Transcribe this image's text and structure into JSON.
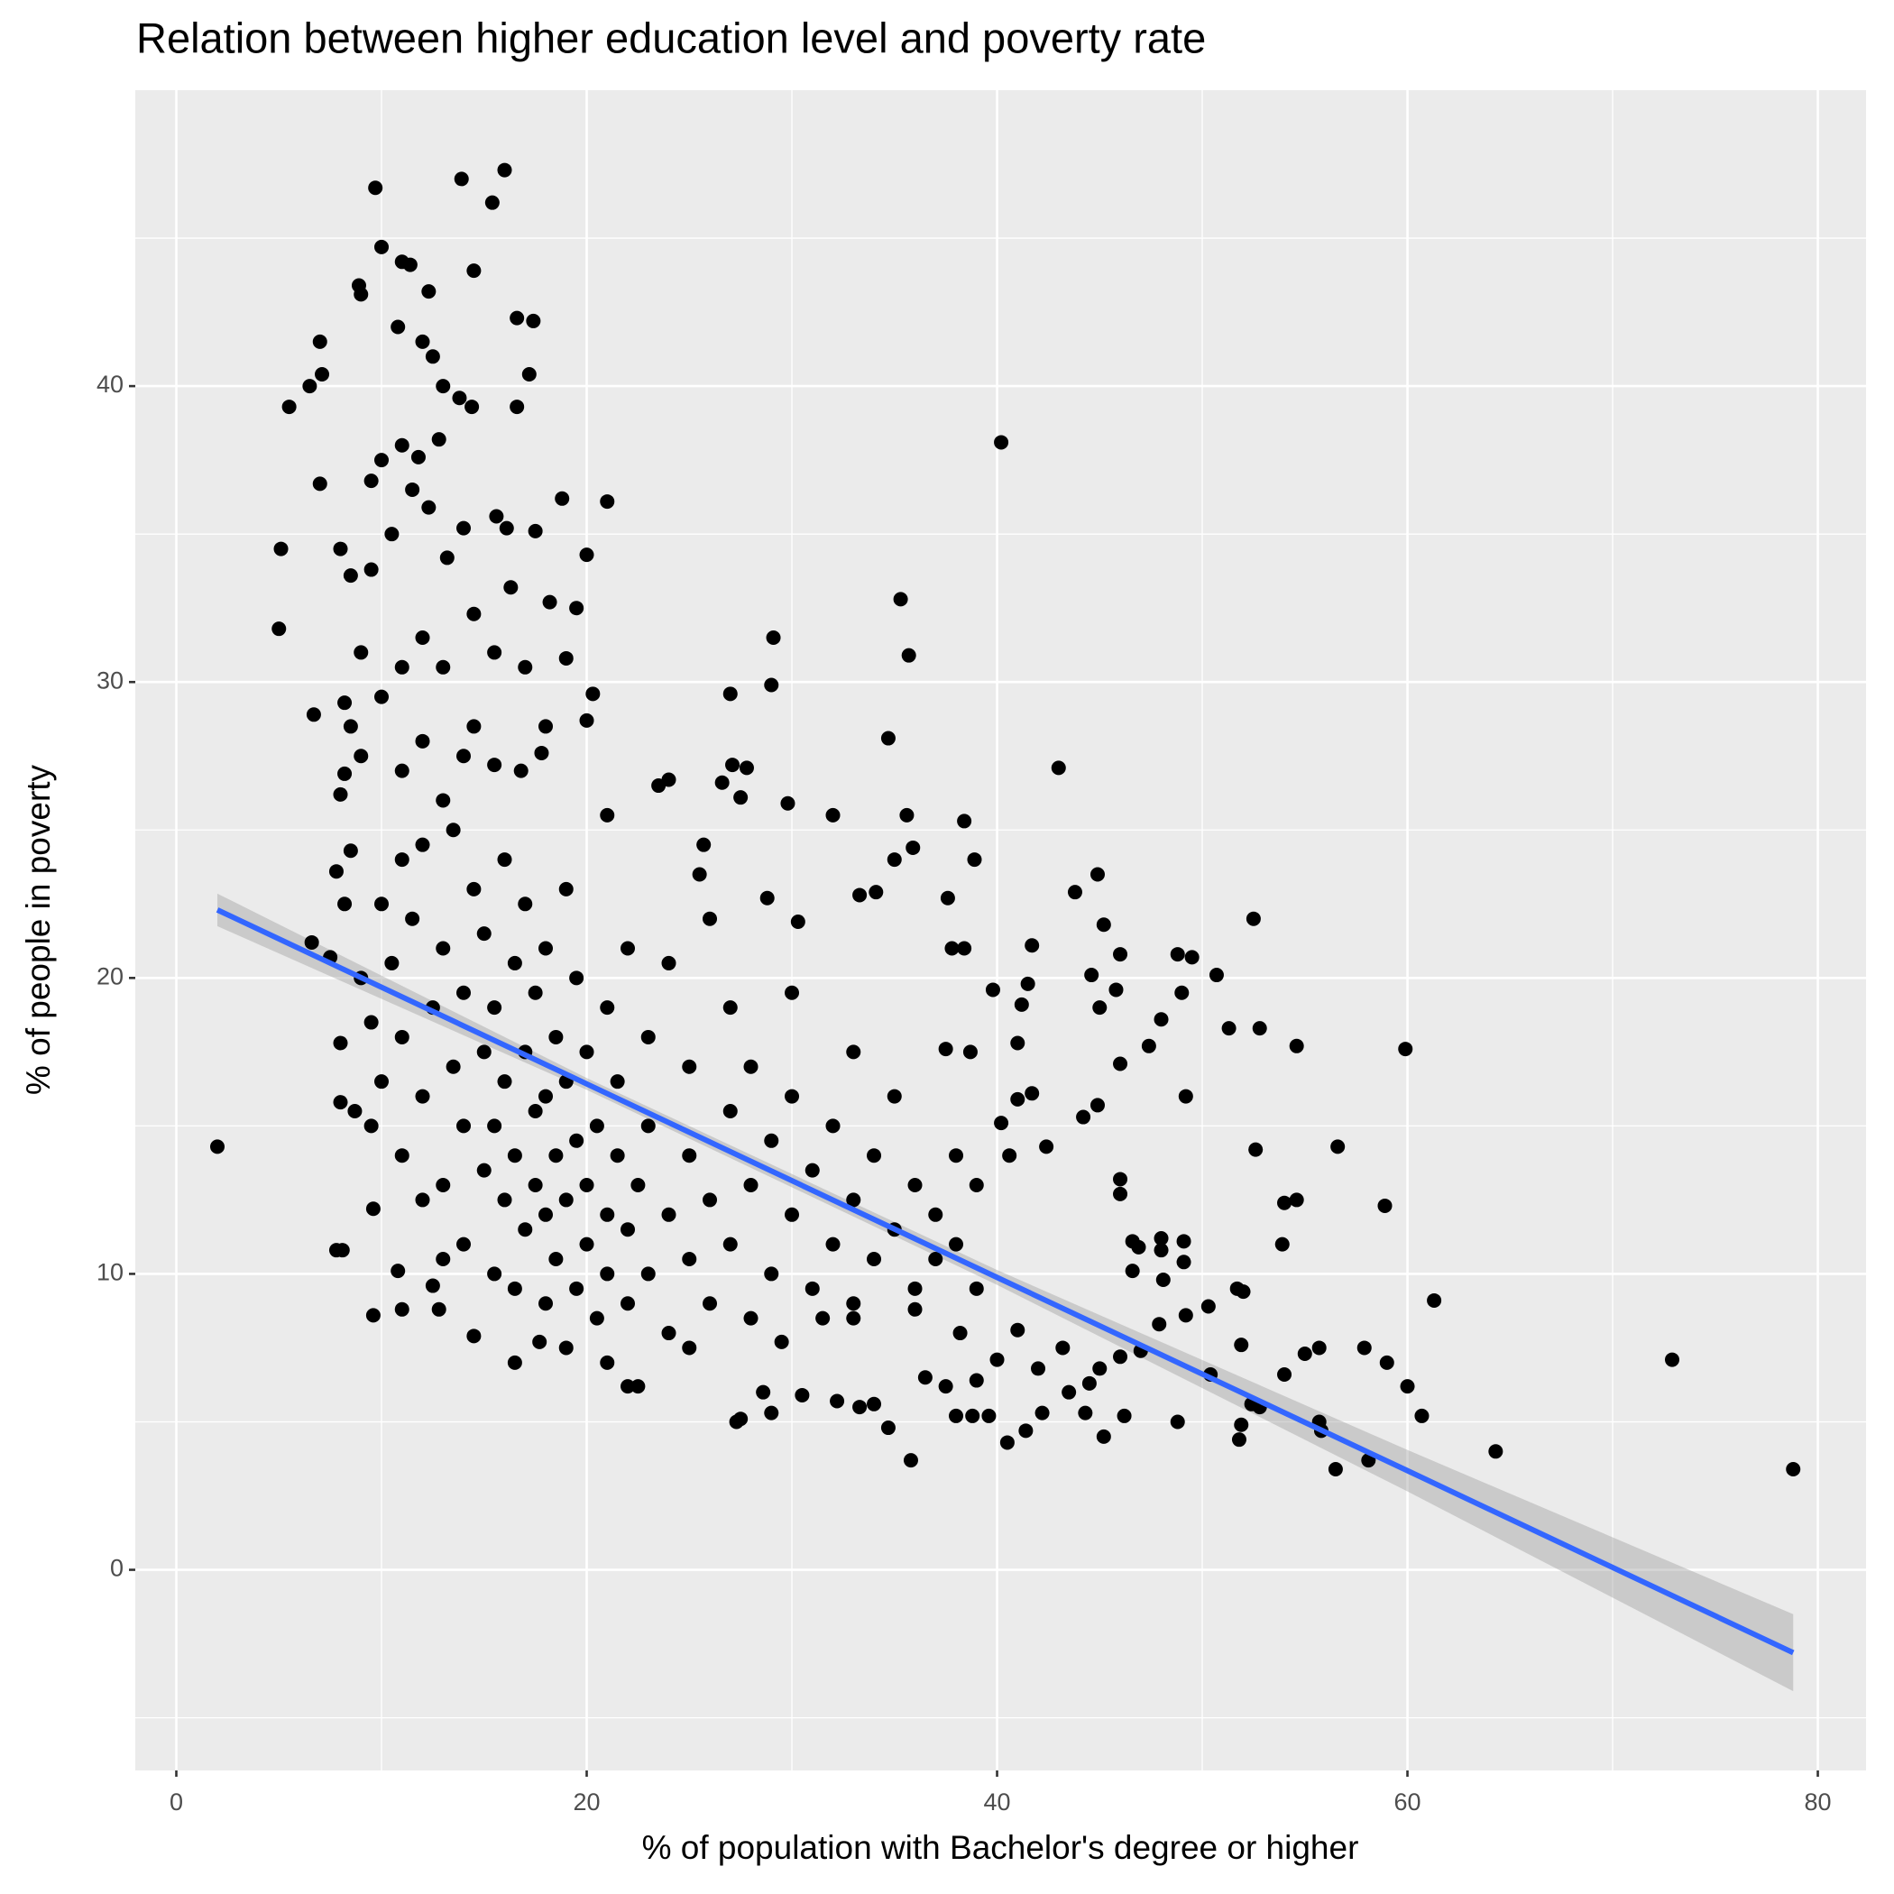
{
  "chart_data": {
    "type": "scatter",
    "title": "Relation between higher education level and poverty rate",
    "x_label": "% of population with Bachelor's degree or higher",
    "y_label": "% of people in poverty",
    "xlim": [
      -2,
      82.35
    ],
    "ylim": [
      -6.78,
      50
    ],
    "xticks": [
      0,
      20,
      40,
      60,
      80
    ],
    "yticks": [
      0,
      10,
      20,
      30,
      40
    ],
    "grid": true,
    "point_color": "#000000",
    "x": [
      2,
      5,
      5.1,
      5.5,
      6.5,
      7,
      7.1,
      7,
      6.7,
      7.5,
      6.6,
      7.8,
      8.1,
      9.7,
      10,
      8.9,
      9,
      11,
      11.4,
      12.3,
      13.9,
      15.4,
      16,
      14.5,
      16.6,
      17.4,
      10.8,
      12,
      12.5,
      13,
      13.8,
      14.4,
      16.6,
      17.2,
      12.8,
      11,
      11.8,
      10,
      9.5,
      11.5,
      12.3,
      14,
      15.6,
      16.1,
      17.5,
      18.8,
      21,
      20,
      19.5,
      18.2,
      16.3,
      14.5,
      13.2,
      8,
      8.5,
      9.5,
      10.5,
      8.2,
      9,
      10,
      11,
      12,
      13,
      14.5,
      15.5,
      17,
      18,
      19,
      20.3,
      20,
      17.8,
      16.8,
      15.5,
      40.2,
      35.3,
      35.7,
      29.1,
      29,
      27,
      34.7,
      43,
      27.1,
      27.8,
      26.6,
      27.5,
      29.8,
      32,
      35.6,
      38.4,
      23.5,
      24,
      21,
      25.7,
      25.5,
      35,
      35.9,
      38.9,
      44.9,
      43.8,
      52.5,
      37.6,
      33.3,
      34.1,
      28.8,
      30.3,
      37.8,
      38.4,
      41.7,
      45.2,
      46,
      48.8,
      49.5,
      50.7,
      49,
      48,
      44.6,
      41.5,
      39.8,
      41.2,
      45,
      45.8,
      47.4,
      51.3,
      52.8,
      54.6,
      59.9,
      41,
      38.7,
      37.5,
      46,
      41.7,
      44.9,
      44.2,
      49.2,
      41,
      40.2,
      52.6,
      56.6,
      42.4,
      40.6,
      46,
      46,
      54,
      54.6,
      58.9,
      53.9,
      61.3,
      52,
      51.7,
      50.3,
      47.9,
      49.2,
      46.6,
      48,
      49.1,
      46.9,
      48,
      46.6,
      48.1,
      49.1,
      50.4,
      48.8,
      51.9,
      51.8,
      52.4,
      52.8,
      51.9,
      54,
      55,
      55.7,
      57.9,
      59,
      60,
      60.7,
      55.7,
      55.8,
      56.5,
      58.1,
      64.3,
      72.9,
      78.8,
      45.2,
      44.3,
      46.2,
      45,
      40.5,
      41.4,
      42.2,
      35.8,
      34.7,
      38,
      38.8,
      39.6,
      34,
      33.3,
      27.5,
      27.3,
      28.6,
      29,
      30.5,
      32.2,
      36.5,
      37.5,
      39,
      40,
      42,
      43.5,
      44.5,
      46,
      47,
      43.2,
      41,
      38.2,
      36,
      33,
      31.5,
      29.5,
      25,
      22,
      21,
      22.5,
      19,
      17.7,
      16.5,
      14.5,
      12.8,
      11,
      9.6,
      10.8,
      12.5,
      9.6,
      8,
      8.7,
      9.5,
      8,
      8.2,
      7.8,
      8,
      8.2,
      8.5,
      9,
      8.5,
      10.5,
      11,
      11.5,
      12,
      12,
      12.5,
      13,
      13,
      13.5,
      13.5,
      14,
      14,
      14,
      14.5,
      15,
      15,
      15,
      15.5,
      15.5,
      15.5,
      16,
      16,
      16,
      16.5,
      16.5,
      16.5,
      17,
      17,
      17,
      17.5,
      17.5,
      17.5,
      18,
      18,
      18,
      18,
      18.5,
      18.5,
      18.5,
      19,
      19,
      19,
      19.5,
      19.5,
      19.5,
      20,
      20,
      20,
      20.5,
      20.5,
      21,
      21,
      21,
      21.5,
      21.5,
      22,
      22,
      22,
      22.5,
      23,
      23,
      23,
      24,
      24,
      24,
      25,
      25,
      25,
      26,
      26,
      26,
      27,
      27,
      27,
      28,
      28,
      28,
      29,
      29,
      30,
      30,
      30,
      31,
      31,
      32,
      32,
      33,
      33,
      33,
      34,
      34,
      35,
      35,
      36,
      36,
      37,
      37,
      38,
      38,
      39,
      39,
      11,
      12,
      13,
      14,
      9,
      9.5,
      10,
      10,
      11,
      11,
      12,
      13
    ],
    "values": [
      14.3,
      31.8,
      34.5,
      39.3,
      40,
      41.5,
      40.4,
      36.7,
      28.9,
      20.7,
      21.2,
      10.8,
      10.8,
      46.7,
      44.7,
      43.4,
      43.1,
      44.2,
      44.1,
      43.2,
      47,
      46.2,
      47.3,
      43.9,
      42.3,
      42.2,
      42,
      41.5,
      41,
      40,
      39.6,
      39.3,
      39.3,
      40.4,
      38.2,
      38,
      37.6,
      37.5,
      36.8,
      36.5,
      35.9,
      35.2,
      35.6,
      35.2,
      35.1,
      36.2,
      36.1,
      34.3,
      32.5,
      32.7,
      33.2,
      32.3,
      34.2,
      34.5,
      33.6,
      33.8,
      35,
      29.3,
      31,
      29.5,
      30.5,
      31.5,
      30.5,
      28.5,
      31,
      30.5,
      28.5,
      30.8,
      29.6,
      28.7,
      27.6,
      27,
      27.2,
      38.1,
      32.8,
      30.9,
      31.5,
      29.9,
      29.6,
      28.1,
      27.1,
      27.2,
      27.1,
      26.6,
      26.1,
      25.9,
      25.5,
      25.5,
      25.3,
      26.5,
      26.7,
      25.5,
      24.5,
      23.5,
      24,
      24.4,
      24,
      23.5,
      22.9,
      22,
      22.7,
      22.8,
      22.9,
      22.7,
      21.9,
      21,
      21,
      21.1,
      21.8,
      20.8,
      20.8,
      20.7,
      20.1,
      19.5,
      18.6,
      20.1,
      19.8,
      19.6,
      19.1,
      19,
      19.6,
      17.7,
      18.3,
      18.3,
      17.7,
      17.6,
      17.8,
      17.5,
      17.6,
      17.1,
      16.1,
      15.7,
      15.3,
      16,
      15.9,
      15.1,
      14.2,
      14.3,
      14.3,
      14,
      13.2,
      12.7,
      12.4,
      12.5,
      12.3,
      11,
      9.1,
      9.4,
      9.5,
      8.9,
      8.3,
      8.6,
      11.1,
      11.2,
      11.1,
      10.9,
      10.8,
      10.1,
      9.8,
      10.4,
      6.6,
      5,
      4.9,
      4.4,
      5.6,
      5.5,
      7.6,
      6.6,
      7.3,
      7.5,
      7.5,
      7,
      6.2,
      5.2,
      5,
      4.7,
      3.4,
      3.7,
      4,
      7.1,
      3.4,
      4.5,
      5.3,
      5.2,
      6.8,
      4.3,
      4.7,
      5.3,
      3.7,
      4.8,
      5.2,
      5.2,
      5.2,
      5.6,
      5.5,
      5.1,
      5,
      6,
      5.3,
      5.9,
      5.7,
      6.5,
      6.2,
      6.4,
      7.1,
      6.8,
      6,
      6.3,
      7.2,
      7.4,
      7.5,
      8.1,
      8,
      8.8,
      8.5,
      8.5,
      7.7,
      7.5,
      6.2,
      7,
      6.2,
      7.5,
      7.7,
      7,
      7.9,
      8.8,
      8.8,
      8.6,
      10.1,
      9.6,
      12.2,
      15.8,
      15.5,
      15,
      17.8,
      22.5,
      23.6,
      26.2,
      26.9,
      24.3,
      27.5,
      28.5,
      20.5,
      18,
      22,
      16,
      24.5,
      19,
      13,
      21,
      17,
      25,
      11,
      15,
      19.5,
      23,
      13.5,
      17.5,
      21.5,
      10,
      15,
      19,
      12.5,
      16.5,
      24,
      9.5,
      14,
      20.5,
      11.5,
      17.5,
      22.5,
      13,
      15.5,
      19.5,
      9,
      12,
      16,
      21,
      10.5,
      14,
      18,
      12.5,
      16.5,
      23,
      9.5,
      14.5,
      20,
      11,
      13,
      17.5,
      8.5,
      15,
      10,
      12,
      19,
      14,
      16.5,
      9,
      11.5,
      21,
      13,
      10,
      15,
      18,
      8,
      12,
      20.5,
      10.5,
      14,
      17,
      9,
      12.5,
      22,
      11,
      15.5,
      19,
      8.5,
      13,
      17,
      10,
      14.5,
      12,
      16,
      19.5,
      9.5,
      13.5,
      11,
      15,
      9,
      12.5,
      17.5,
      10.5,
      14,
      11.5,
      16,
      9.5,
      13,
      10.5,
      12,
      11,
      14,
      9.5,
      13,
      27,
      28,
      26,
      27.5,
      20,
      18.5,
      16.5,
      22.5,
      24,
      14,
      12.5,
      10.5
    ],
    "fit": {
      "color": "#3366ff",
      "band_color": "#999999",
      "x": [
        2,
        20,
        40,
        60,
        78.8
      ],
      "values": [
        22.3,
        16.42,
        9.88,
        3.35,
        -2.8
      ],
      "lower": [
        21.75,
        16.22,
        9.63,
        2.65,
        -4.1
      ],
      "upper": [
        22.85,
        16.62,
        10.13,
        4.05,
        -1.5
      ]
    }
  }
}
